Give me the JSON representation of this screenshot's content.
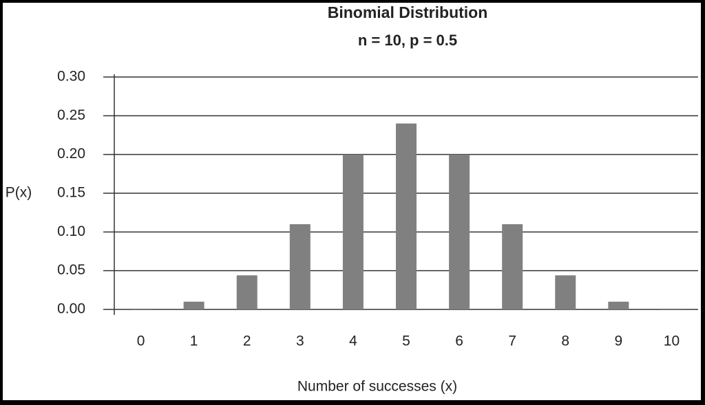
{
  "chart_data": {
    "type": "bar",
    "title": "Binomial Distribution",
    "subtitle": "n = 10, p = 0.5",
    "y_label": "P(x)",
    "x_label": "Number of successes (x)",
    "categories": [
      "0",
      "1",
      "2",
      "3",
      "4",
      "5",
      "6",
      "7",
      "8",
      "9",
      "10"
    ],
    "values": [
      0.001,
      0.01,
      0.044,
      0.11,
      0.2,
      0.24,
      0.2,
      0.11,
      0.044,
      0.01,
      0.001
    ],
    "color": "#808080",
    "ylim": [
      0,
      0.3
    ],
    "yticks": [
      {
        "value": 0,
        "label": "0.00"
      },
      {
        "value": 0.05,
        "label": "0.05"
      },
      {
        "value": 0.1,
        "label": "0.10"
      },
      {
        "value": 0.15,
        "label": "0.15"
      },
      {
        "value": 0.2,
        "label": "0.20"
      },
      {
        "value": 0.25,
        "label": "0.25"
      },
      {
        "value": 0.3,
        "label": "0.30"
      }
    ],
    "grid": true
  }
}
